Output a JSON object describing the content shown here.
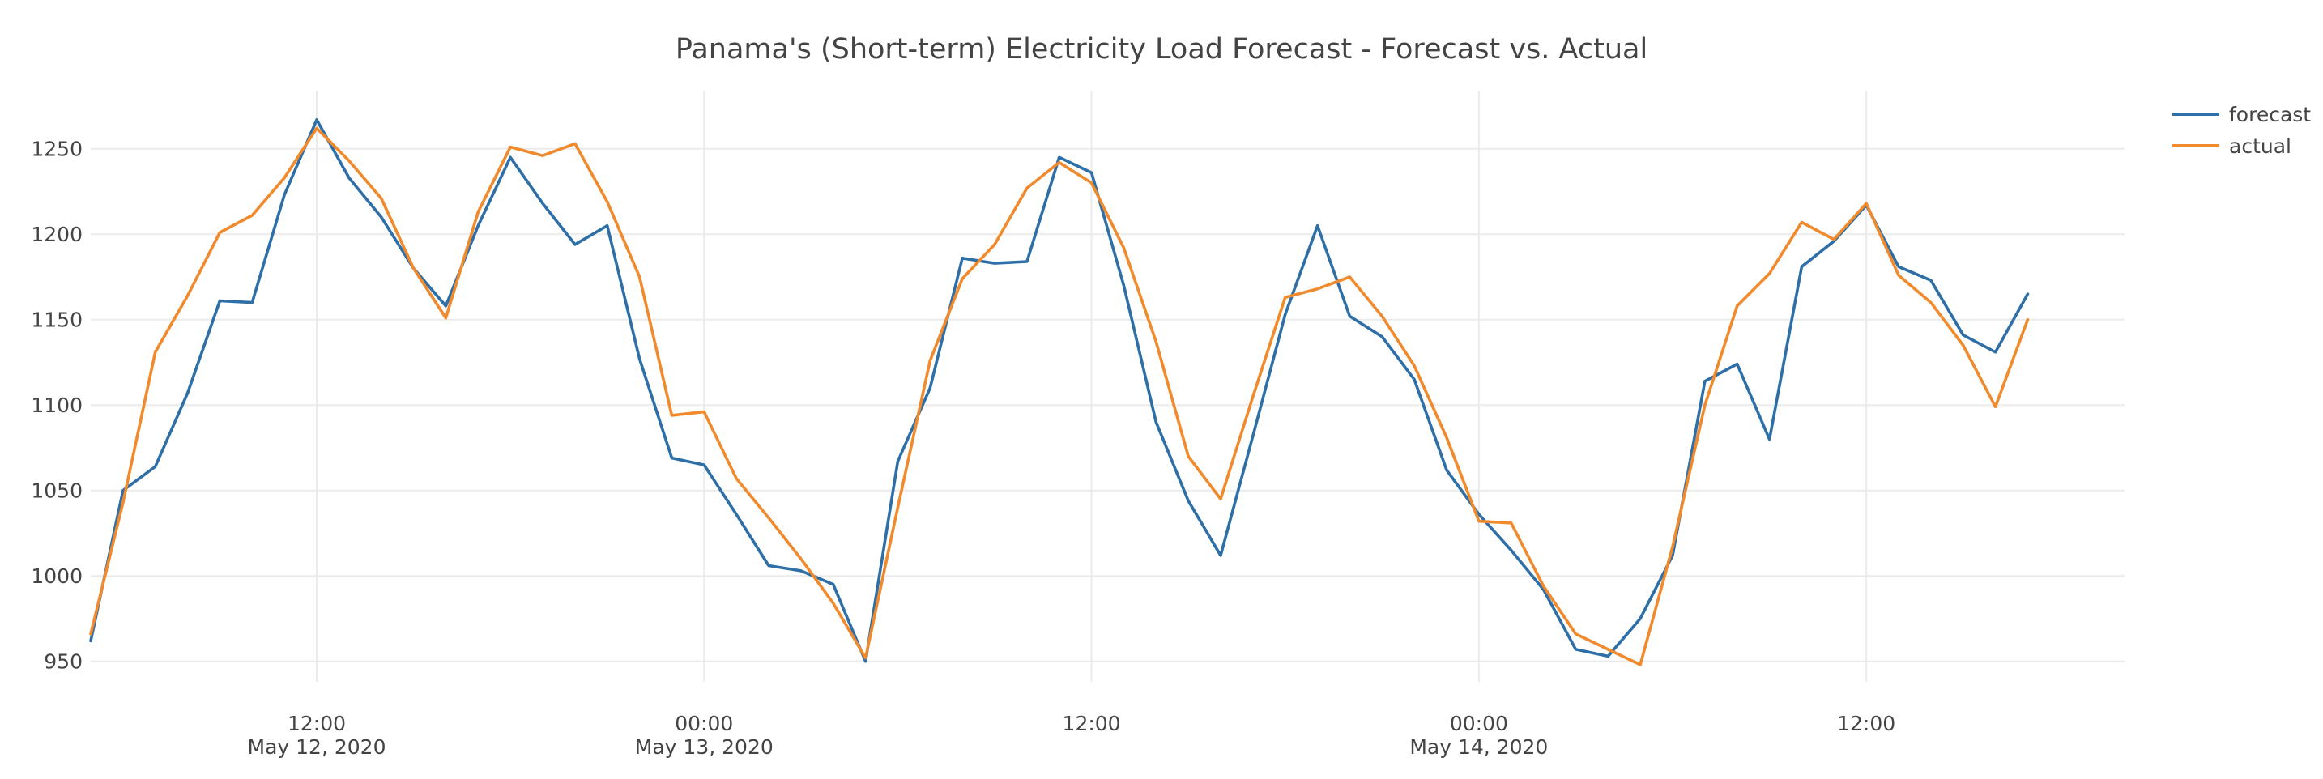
{
  "chart_data": {
    "type": "line",
    "title": "Panama's (Short-term) Electricity Load Forecast - Forecast vs. Actual",
    "xlabel": "",
    "ylabel": "",
    "x_start": "2020-05-12 05:00",
    "x_step_hours": 1,
    "xlim": [
      "2020-05-12 05:00",
      "2020-05-14 20:00"
    ],
    "ylim": [
      938,
      1284
    ],
    "grid": true,
    "legend_position": "top-right",
    "x_ticks": [
      {
        "time": "2020-05-12 12:00",
        "label": "12:00",
        "sublabel": "May 12, 2020"
      },
      {
        "time": "2020-05-13 00:00",
        "label": "00:00",
        "sublabel": "May 13, 2020"
      },
      {
        "time": "2020-05-13 12:00",
        "label": "12:00",
        "sublabel": ""
      },
      {
        "time": "2020-05-14 00:00",
        "label": "00:00",
        "sublabel": "May 14, 2020"
      },
      {
        "time": "2020-05-14 12:00",
        "label": "12:00",
        "sublabel": ""
      }
    ],
    "y_ticks": [
      950,
      1000,
      1050,
      1100,
      1150,
      1200,
      1250
    ],
    "series": [
      {
        "name": "forecast",
        "color": "#2f6fa7",
        "values": [
          962,
          1050,
          1064,
          1107,
          1161,
          1160,
          1223,
          1267,
          1233,
          1210,
          1180,
          1158,
          1205,
          1245,
          1218,
          1194,
          1205,
          1127,
          1069,
          1065,
          1036,
          1006,
          1003,
          995,
          950,
          1067,
          1110,
          1186,
          1183,
          1184,
          1245,
          1236,
          1170,
          1090,
          1044,
          1012,
          1082,
          1153,
          1205,
          1152,
          1140,
          1115,
          1062,
          1036,
          1015,
          992,
          957,
          953,
          975,
          1012,
          1114,
          1124,
          1080,
          1181,
          1196,
          1217,
          1181,
          1173,
          1141,
          1131,
          1165
        ]
      },
      {
        "name": "actual",
        "color": "#f08a2c",
        "values": [
          966,
          1043,
          1131,
          1164,
          1201,
          1211,
          1233,
          1262,
          1243,
          1221,
          1180,
          1151,
          1213,
          1251,
          1246,
          1253,
          1219,
          1175,
          1094,
          1096,
          1057,
          1034,
          1010,
          984,
          952,
          1040,
          1126,
          1174,
          1194,
          1227,
          1242,
          1230,
          1192,
          1137,
          1070,
          1045,
          1105,
          1163,
          1168,
          1175,
          1152,
          1123,
          1081,
          1032,
          1031,
          994,
          966,
          957,
          948,
          1017,
          1100,
          1158,
          1177,
          1207,
          1197,
          1218,
          1176,
          1160,
          1135,
          1099,
          1150
        ]
      }
    ]
  }
}
